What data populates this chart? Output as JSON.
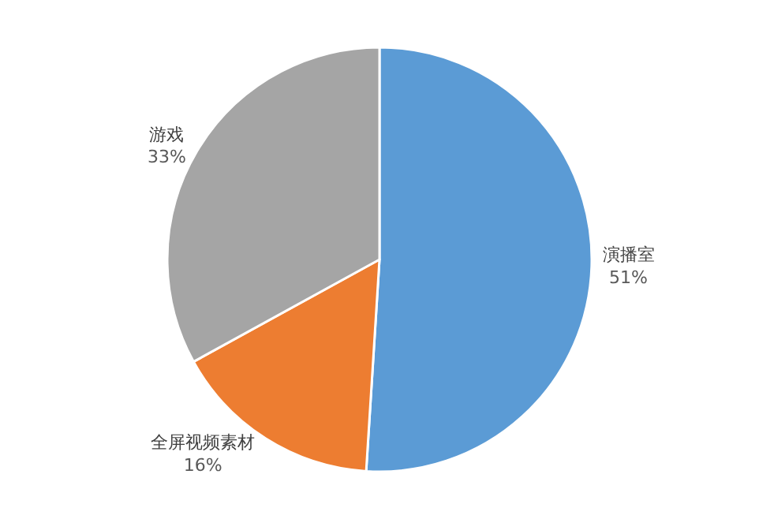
{
  "chart_data": {
    "type": "pie",
    "categories": [
      "演播室",
      "全屏视频素材",
      "游戏"
    ],
    "values": [
      51,
      16,
      33
    ],
    "value_labels": [
      "51%",
      "16%",
      "33%"
    ],
    "colors": [
      "#5b9bd5",
      "#ed7d31",
      "#a5a5a5"
    ],
    "legend": false
  }
}
